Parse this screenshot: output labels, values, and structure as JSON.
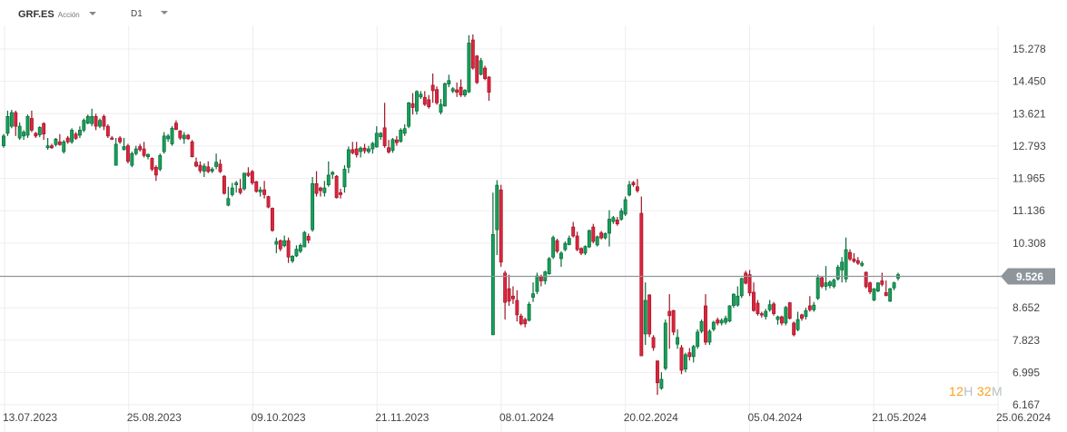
{
  "header": {
    "symbol": "GRF.ES",
    "instrument_type": "Acción",
    "timeframe": "D1"
  },
  "timer": {
    "hours": "12",
    "hours_unit": "H",
    "minutes": "32",
    "minutes_unit": "M"
  },
  "colors": {
    "up": "#16a05a",
    "up_border": "#0b6a3a",
    "down": "#e0233d",
    "down_border": "#9e1628",
    "price_line": "#8e959b",
    "grid": "#eeeeee"
  },
  "chart_data": {
    "type": "candlestick",
    "title": "GRF.ES D1",
    "current_price": 9.526,
    "current_price_label": "9.526",
    "y_ticks": [
      "15.278",
      "14.450",
      "13.621",
      "12.793",
      "11.965",
      "11.136",
      "10.308",
      "8.652",
      "7.823",
      "6.995",
      "6.167"
    ],
    "x_ticks": [
      "13.07.2023",
      "25.08.2023",
      "09.10.2023",
      "21.11.2023",
      "08.01.2024",
      "20.02.2024",
      "05.04.2024",
      "21.05.2024",
      "25.06.2024"
    ],
    "ylim": [
      6.167,
      15.278
    ],
    "grid": true,
    "candle_format": [
      "open",
      "high",
      "low",
      "close"
    ],
    "candles": [
      [
        12.8,
        13.1,
        12.75,
        13.05
      ],
      [
        13.12,
        13.7,
        13.05,
        13.55
      ],
      [
        13.3,
        13.72,
        13.25,
        13.65
      ],
      [
        13.65,
        13.7,
        13.05,
        13.3
      ],
      [
        13.0,
        13.4,
        12.95,
        13.3
      ],
      [
        13.05,
        13.2,
        12.95,
        13.15
      ],
      [
        13.07,
        13.6,
        13.0,
        13.55
      ],
      [
        13.5,
        13.7,
        13.15,
        13.2
      ],
      [
        13.12,
        13.15,
        13.0,
        13.05
      ],
      [
        13.08,
        13.3,
        13.02,
        13.27
      ],
      [
        13.37,
        13.4,
        12.95,
        13.1
      ],
      [
        12.75,
        13.0,
        12.7,
        12.8
      ],
      [
        12.8,
        12.85,
        12.72,
        12.75
      ],
      [
        12.83,
        13.0,
        12.78,
        12.97
      ],
      [
        12.9,
        13.1,
        12.8,
        12.83
      ],
      [
        12.65,
        12.95,
        12.6,
        12.9
      ],
      [
        13.0,
        13.05,
        12.85,
        12.9
      ],
      [
        12.9,
        13.25,
        12.85,
        13.2
      ],
      [
        13.1,
        13.15,
        12.95,
        12.99
      ],
      [
        13.07,
        13.3,
        13.0,
        13.2
      ],
      [
        13.2,
        13.5,
        13.15,
        13.45
      ],
      [
        13.38,
        13.6,
        13.35,
        13.55
      ],
      [
        13.37,
        13.75,
        13.3,
        13.55
      ],
      [
        13.55,
        13.62,
        13.2,
        13.3
      ],
      [
        13.3,
        13.5,
        13.25,
        13.45
      ],
      [
        13.55,
        13.6,
        13.2,
        13.3
      ],
      [
        13.3,
        13.35,
        13.0,
        13.05
      ],
      [
        13.0,
        13.05,
        12.95,
        12.97
      ],
      [
        12.3,
        13.0,
        12.3,
        12.84
      ],
      [
        13.0,
        13.05,
        12.85,
        12.9
      ],
      [
        12.7,
        13.0,
        12.68,
        12.78
      ],
      [
        12.8,
        12.85,
        12.35,
        12.4
      ],
      [
        12.3,
        12.65,
        12.25,
        12.6
      ],
      [
        12.6,
        12.8,
        12.55,
        12.72
      ],
      [
        12.78,
        12.85,
        12.65,
        12.7
      ],
      [
        12.72,
        12.9,
        12.5,
        12.55
      ],
      [
        12.52,
        12.6,
        12.45,
        12.58
      ],
      [
        12.48,
        12.5,
        12.15,
        12.2
      ],
      [
        12.25,
        12.3,
        11.9,
        12.05
      ],
      [
        12.2,
        12.6,
        12.15,
        12.55
      ],
      [
        12.65,
        13.15,
        12.6,
        13.05
      ],
      [
        12.98,
        13.1,
        12.9,
        13.05
      ],
      [
        12.85,
        13.3,
        12.8,
        13.25
      ],
      [
        13.38,
        13.45,
        13.2,
        13.22
      ],
      [
        13.18,
        13.2,
        12.95,
        13.0
      ],
      [
        12.98,
        13.15,
        12.85,
        13.07
      ],
      [
        13.07,
        13.1,
        12.95,
        12.98
      ],
      [
        12.9,
        12.95,
        12.5,
        12.52
      ],
      [
        12.38,
        12.5,
        12.25,
        12.28
      ],
      [
        12.3,
        12.4,
        12.1,
        12.16
      ],
      [
        12.15,
        12.35,
        12.0,
        12.28
      ],
      [
        12.26,
        12.4,
        12.1,
        12.14
      ],
      [
        12.15,
        12.25,
        12.1,
        12.2
      ],
      [
        12.27,
        12.6,
        12.2,
        12.38
      ],
      [
        12.33,
        12.45,
        12.1,
        12.14
      ],
      [
        12.02,
        12.05,
        11.55,
        11.58
      ],
      [
        11.28,
        11.75,
        11.25,
        11.45
      ],
      [
        11.55,
        11.85,
        11.5,
        11.72
      ],
      [
        11.8,
        11.9,
        11.6,
        11.85
      ],
      [
        11.7,
        11.95,
        11.55,
        11.6
      ],
      [
        11.7,
        12.1,
        11.65,
        12.1
      ],
      [
        12.1,
        12.25,
        12.0,
        12.04
      ],
      [
        12.14,
        12.18,
        11.8,
        11.85
      ],
      [
        11.88,
        11.9,
        11.6,
        11.63
      ],
      [
        11.62,
        11.75,
        11.5,
        11.67
      ],
      [
        11.67,
        11.9,
        11.45,
        11.55
      ],
      [
        11.5,
        11.52,
        11.2,
        11.23
      ],
      [
        11.2,
        11.22,
        10.6,
        10.63
      ],
      [
        10.28,
        10.45,
        10.05,
        10.35
      ],
      [
        10.37,
        10.4,
        10.1,
        10.16
      ],
      [
        10.24,
        10.5,
        10.2,
        10.37
      ],
      [
        10.37,
        10.45,
        9.8,
        9.95
      ],
      [
        9.85,
        10.0,
        9.8,
        9.97
      ],
      [
        9.98,
        10.25,
        9.95,
        10.15
      ],
      [
        10.1,
        10.3,
        10.05,
        10.25
      ],
      [
        10.21,
        10.62,
        10.2,
        10.58
      ],
      [
        10.48,
        10.55,
        10.3,
        10.38
      ],
      [
        10.65,
        12.0,
        10.6,
        11.83
      ],
      [
        11.83,
        12.15,
        11.5,
        11.58
      ],
      [
        11.72,
        11.75,
        11.5,
        11.65
      ],
      [
        11.6,
        11.9,
        11.5,
        11.72
      ],
      [
        11.8,
        12.4,
        11.75,
        12.05
      ],
      [
        12.07,
        12.15,
        11.95,
        12.12
      ],
      [
        12.02,
        12.05,
        11.45,
        11.47
      ],
      [
        11.6,
        11.7,
        11.45,
        11.55
      ],
      [
        11.75,
        12.3,
        11.6,
        12.2
      ],
      [
        12.25,
        12.78,
        12.1,
        12.7
      ],
      [
        12.7,
        12.9,
        12.58,
        12.62
      ],
      [
        12.72,
        12.9,
        12.5,
        12.57
      ],
      [
        12.65,
        12.78,
        12.5,
        12.74
      ],
      [
        12.74,
        12.85,
        12.6,
        12.67
      ],
      [
        12.65,
        12.8,
        12.6,
        12.72
      ],
      [
        12.72,
        12.9,
        12.6,
        12.86
      ],
      [
        12.77,
        13.3,
        12.75,
        13.12
      ],
      [
        13.03,
        13.15,
        12.95,
        13.12
      ],
      [
        13.26,
        13.9,
        12.75,
        12.8
      ],
      [
        12.75,
        12.95,
        12.6,
        12.64
      ],
      [
        12.68,
        13.0,
        12.62,
        12.96
      ],
      [
        12.95,
        13.05,
        12.8,
        12.88
      ],
      [
        12.91,
        13.25,
        12.88,
        13.2
      ],
      [
        13.12,
        13.35,
        13.05,
        13.24
      ],
      [
        13.3,
        13.92,
        13.25,
        13.9
      ],
      [
        13.88,
        14.15,
        13.6,
        13.78
      ],
      [
        13.69,
        14.22,
        13.6,
        14.19
      ],
      [
        14.05,
        14.2,
        14.0,
        14.12
      ],
      [
        14.04,
        14.2,
        13.82,
        13.86
      ],
      [
        13.98,
        14.1,
        13.75,
        13.8
      ],
      [
        14.35,
        14.65,
        13.9,
        14.21
      ],
      [
        14.24,
        14.32,
        13.85,
        13.9
      ],
      [
        13.66,
        14.0,
        13.6,
        13.86
      ],
      [
        13.82,
        14.42,
        13.8,
        14.39
      ],
      [
        14.38,
        14.62,
        14.3,
        14.47
      ],
      [
        14.2,
        14.3,
        14.15,
        14.26
      ],
      [
        14.23,
        14.42,
        14.05,
        14.17
      ],
      [
        14.3,
        14.5,
        14.05,
        14.1
      ],
      [
        14.1,
        14.25,
        14.05,
        14.22
      ],
      [
        14.18,
        15.63,
        14.15,
        15.43
      ],
      [
        15.51,
        15.65,
        14.75,
        14.79
      ],
      [
        15.1,
        15.12,
        14.38,
        14.42
      ],
      [
        14.63,
        15.05,
        14.6,
        14.98
      ],
      [
        14.79,
        14.85,
        14.48,
        14.52
      ],
      [
        14.56,
        14.58,
        13.95,
        14.17
      ],
      [
        7.96,
        11.6,
        7.95,
        10.53
      ],
      [
        10.65,
        11.92,
        10.0,
        11.79
      ],
      [
        11.67,
        11.8,
        9.7,
        9.82
      ],
      [
        9.54,
        9.6,
        8.35,
        8.79
      ],
      [
        9.14,
        9.5,
        8.7,
        8.82
      ],
      [
        8.95,
        9.2,
        8.75,
        8.88
      ],
      [
        8.84,
        9.1,
        8.3,
        8.47
      ],
      [
        8.44,
        8.5,
        8.2,
        8.24
      ],
      [
        8.35,
        8.4,
        8.15,
        8.24
      ],
      [
        8.33,
        8.8,
        8.3,
        8.74
      ],
      [
        8.92,
        9.3,
        8.8,
        9.01
      ],
      [
        9.07,
        9.55,
        9.0,
        9.47
      ],
      [
        9.45,
        9.5,
        9.2,
        9.34
      ],
      [
        9.34,
        9.6,
        9.25,
        9.57
      ],
      [
        9.52,
        9.95,
        9.5,
        9.91
      ],
      [
        9.95,
        10.5,
        9.9,
        10.45
      ],
      [
        10.37,
        10.42,
        10.05,
        10.1
      ],
      [
        9.91,
        10.1,
        9.7,
        10.05
      ],
      [
        10.14,
        10.35,
        10.1,
        10.3
      ],
      [
        10.27,
        10.5,
        10.25,
        10.43
      ],
      [
        10.72,
        10.85,
        10.45,
        10.49
      ],
      [
        10.49,
        10.6,
        10.1,
        10.14
      ],
      [
        10.17,
        10.2,
        10.0,
        10.05
      ],
      [
        10.05,
        10.25,
        10.0,
        10.22
      ],
      [
        10.21,
        10.65,
        10.18,
        10.63
      ],
      [
        10.72,
        10.8,
        10.3,
        10.35
      ],
      [
        10.26,
        10.5,
        10.22,
        10.47
      ],
      [
        10.57,
        10.62,
        10.4,
        10.44
      ],
      [
        10.44,
        10.58,
        10.4,
        10.55
      ],
      [
        10.56,
        11.15,
        10.22,
        10.92
      ],
      [
        10.86,
        11.0,
        10.8,
        10.96
      ],
      [
        10.9,
        10.98,
        10.75,
        10.8
      ],
      [
        10.92,
        11.2,
        10.88,
        11.13
      ],
      [
        11.05,
        11.5,
        11.0,
        11.42
      ],
      [
        11.54,
        11.9,
        11.5,
        11.8
      ],
      [
        11.86,
        11.9,
        11.75,
        11.8
      ],
      [
        11.75,
        11.95,
        11.6,
        11.65
      ],
      [
        11.07,
        11.5,
        7.42,
        7.42
      ],
      [
        7.98,
        9.3,
        7.7,
        8.84
      ],
      [
        8.98,
        9.0,
        7.9,
        7.98
      ],
      [
        7.89,
        7.95,
        7.55,
        7.63
      ],
      [
        7.29,
        7.3,
        6.42,
        6.73
      ],
      [
        6.59,
        7.0,
        6.55,
        6.82
      ],
      [
        7.1,
        8.35,
        7.05,
        8.26
      ],
      [
        8.56,
        9.0,
        7.6,
        8.45
      ],
      [
        8.58,
        8.6,
        7.95,
        8.03
      ],
      [
        7.72,
        8.1,
        7.6,
        7.89
      ],
      [
        7.63,
        7.7,
        6.95,
        7.05
      ],
      [
        7.08,
        7.5,
        7.0,
        7.45
      ],
      [
        7.5,
        7.62,
        7.3,
        7.4
      ],
      [
        7.4,
        7.7,
        7.25,
        7.66
      ],
      [
        7.66,
        8.1,
        7.6,
        8.03
      ],
      [
        8.05,
        8.35,
        8.0,
        8.3
      ],
      [
        8.7,
        9.0,
        7.7,
        7.77
      ],
      [
        7.77,
        8.1,
        7.7,
        8.05
      ],
      [
        8.1,
        8.32,
        8.05,
        8.28
      ],
      [
        8.34,
        8.4,
        8.2,
        8.26
      ],
      [
        8.26,
        8.38,
        8.2,
        8.33
      ],
      [
        8.28,
        8.45,
        8.22,
        8.38
      ],
      [
        8.31,
        8.72,
        8.28,
        8.7
      ],
      [
        8.71,
        9.02,
        8.65,
        9.0
      ],
      [
        8.72,
        9.2,
        8.68,
        8.95
      ],
      [
        8.96,
        9.42,
        8.9,
        9.4
      ],
      [
        9.54,
        9.6,
        9.25,
        9.28
      ],
      [
        9.5,
        9.62,
        8.95,
        9.03
      ],
      [
        9.05,
        9.3,
        8.55,
        8.58
      ],
      [
        8.77,
        8.85,
        8.45,
        8.5
      ],
      [
        8.5,
        8.55,
        8.4,
        8.47
      ],
      [
        8.43,
        8.62,
        8.35,
        8.56
      ],
      [
        8.6,
        8.85,
        8.55,
        8.73
      ],
      [
        8.75,
        8.8,
        8.45,
        8.5
      ],
      [
        8.35,
        8.45,
        8.22,
        8.42
      ],
      [
        8.42,
        8.45,
        8.2,
        8.26
      ],
      [
        8.26,
        8.7,
        8.2,
        8.66
      ],
      [
        8.78,
        8.8,
        8.35,
        8.38
      ],
      [
        8.26,
        8.3,
        7.92,
        7.96
      ],
      [
        8.09,
        8.55,
        8.05,
        8.35
      ],
      [
        8.47,
        8.5,
        8.32,
        8.38
      ],
      [
        8.43,
        8.65,
        8.35,
        8.58
      ],
      [
        8.7,
        8.95,
        8.55,
        8.6
      ],
      [
        8.6,
        8.8,
        8.55,
        8.72
      ],
      [
        8.89,
        9.5,
        8.85,
        9.42
      ],
      [
        9.42,
        9.45,
        9.15,
        9.2
      ],
      [
        9.2,
        9.72,
        9.1,
        9.29
      ],
      [
        9.22,
        9.35,
        9.15,
        9.31
      ],
      [
        9.2,
        9.4,
        9.15,
        9.36
      ],
      [
        9.39,
        9.75,
        9.35,
        9.69
      ],
      [
        9.62,
        9.95,
        9.3,
        9.82
      ],
      [
        9.39,
        10.45,
        9.3,
        10.14
      ],
      [
        10.07,
        10.15,
        9.85,
        9.9
      ],
      [
        9.9,
        10.05,
        9.8,
        9.84
      ],
      [
        9.86,
        9.95,
        9.75,
        9.79
      ],
      [
        9.74,
        9.85,
        9.7,
        9.79
      ],
      [
        9.56,
        9.58,
        9.15,
        9.19
      ],
      [
        9.29,
        9.32,
        9.0,
        9.06
      ],
      [
        8.85,
        9.15,
        8.82,
        9.14
      ],
      [
        9.08,
        9.3,
        9.05,
        9.29
      ],
      [
        9.34,
        9.55,
        9.2,
        9.25
      ],
      [
        9.04,
        9.35,
        8.95,
        8.96
      ],
      [
        8.82,
        9.16,
        8.8,
        9.14
      ],
      [
        9.16,
        9.32,
        9.1,
        9.29
      ],
      [
        9.41,
        9.55,
        9.35,
        9.5
      ]
    ]
  }
}
